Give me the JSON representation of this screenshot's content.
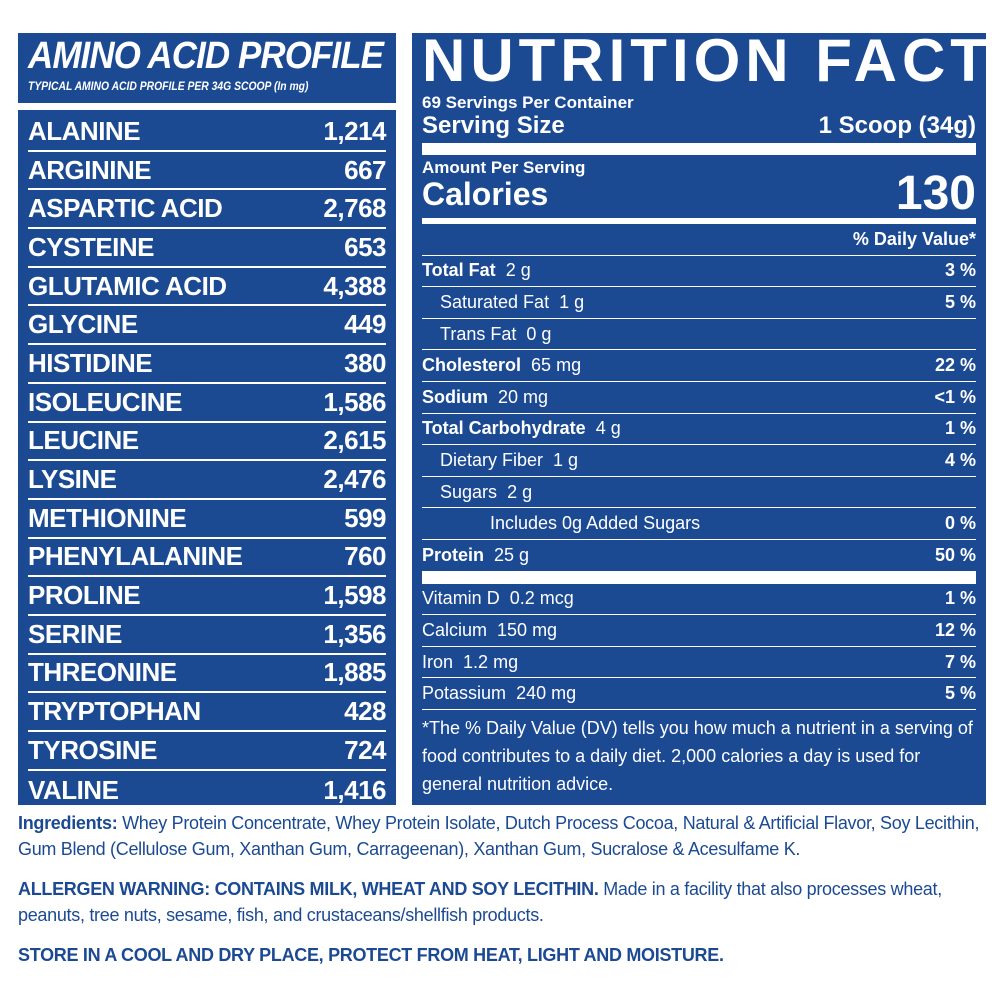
{
  "colors": {
    "brand_blue": "#1b4a93",
    "text_white": "#ffffff"
  },
  "amino": {
    "title": "AMINO ACID PROFILE",
    "subtitle": "TYPICAL AMINO ACID PROFILE PER 34G SCOOP (In mg)",
    "rows": [
      {
        "name": "ALANINE",
        "value": "1,214"
      },
      {
        "name": "ARGININE",
        "value": "667"
      },
      {
        "name": "ASPARTIC ACID",
        "value": "2,768"
      },
      {
        "name": "CYSTEINE",
        "value": "653"
      },
      {
        "name": "GLUTAMIC ACID",
        "value": "4,388"
      },
      {
        "name": "GLYCINE",
        "value": "449"
      },
      {
        "name": "HISTIDINE",
        "value": "380"
      },
      {
        "name": "ISOLEUCINE",
        "value": "1,586"
      },
      {
        "name": "LEUCINE",
        "value": "2,615"
      },
      {
        "name": "LYSINE",
        "value": "2,476"
      },
      {
        "name": "METHIONINE",
        "value": "599"
      },
      {
        "name": "PHENYLALANINE",
        "value": "760"
      },
      {
        "name": "PROLINE",
        "value": "1,598"
      },
      {
        "name": "SERINE",
        "value": "1,356"
      },
      {
        "name": "THREONINE",
        "value": "1,885"
      },
      {
        "name": "TRYPTOPHAN",
        "value": "428"
      },
      {
        "name": "TYROSINE",
        "value": "724"
      },
      {
        "name": "VALINE",
        "value": "1,416"
      }
    ]
  },
  "nutrition": {
    "title": "NUTRITION FACTS",
    "servings": "69 Servings Per Container",
    "serving_size_label": "Serving Size",
    "serving_size_value": "1 Scoop (34g)",
    "amount_per_serving": "Amount Per Serving",
    "calories_label": "Calories",
    "calories_value": "130",
    "dv_header": "% Daily Value*",
    "rows": [
      {
        "label": "Total Fat",
        "amount": "2 g",
        "dv": "3 %"
      },
      {
        "label": "Saturated Fat",
        "amount": "1 g",
        "dv": "5 %"
      },
      {
        "label": "Trans Fat",
        "amount": "0 g",
        "dv": ""
      },
      {
        "label": "Cholesterol",
        "amount": "65 mg",
        "dv": "22 %"
      },
      {
        "label": "Sodium",
        "amount": "20 mg",
        "dv": "<1 %"
      },
      {
        "label": "Total Carbohydrate",
        "amount": "4 g",
        "dv": "1 %"
      },
      {
        "label": "Dietary Fiber",
        "amount": "1 g",
        "dv": "4 %"
      },
      {
        "label": "Sugars",
        "amount": "2 g",
        "dv": ""
      },
      {
        "label": "Includes 0g Added Sugars",
        "amount": "",
        "dv": "0 %"
      },
      {
        "label": "Protein",
        "amount": "25 g",
        "dv": "50 %"
      }
    ],
    "vitamins": [
      {
        "label": "Vitamin D",
        "amount": "0.2 mcg",
        "dv": "1 %"
      },
      {
        "label": "Calcium",
        "amount": "150 mg",
        "dv": "12 %"
      },
      {
        "label": "Iron",
        "amount": "1.2 mg",
        "dv": "7 %"
      },
      {
        "label": "Potassium",
        "amount": "240 mg",
        "dv": "5 %"
      }
    ],
    "footnote": "*The % Daily Value (DV) tells you how much a nutrient in a serving of food contributes to a daily diet. 2,000 calories a day is used for general nutrition advice."
  },
  "ingredients": {
    "label": "Ingredients:",
    "text": " Whey Protein Concentrate, Whey Protein Isolate, Dutch Process Cocoa, Natural & Artificial Flavor, Soy Lecithin, Gum Blend (Cellulose Gum, Xanthan Gum, Carrageenan), Xanthan Gum, Sucralose & Acesulfame K."
  },
  "allergen": {
    "label": "ALLERGEN WARNING: CONTAINS MILK, WHEAT AND SOY LECITHIN.",
    "text": " Made in a facility that also processes wheat, peanuts, tree nuts, sesame, fish, and crustaceans/shellfish products."
  },
  "storage": "STORE IN A COOL AND DRY PLACE, PROTECT FROM HEAT, LIGHT AND MOISTURE."
}
